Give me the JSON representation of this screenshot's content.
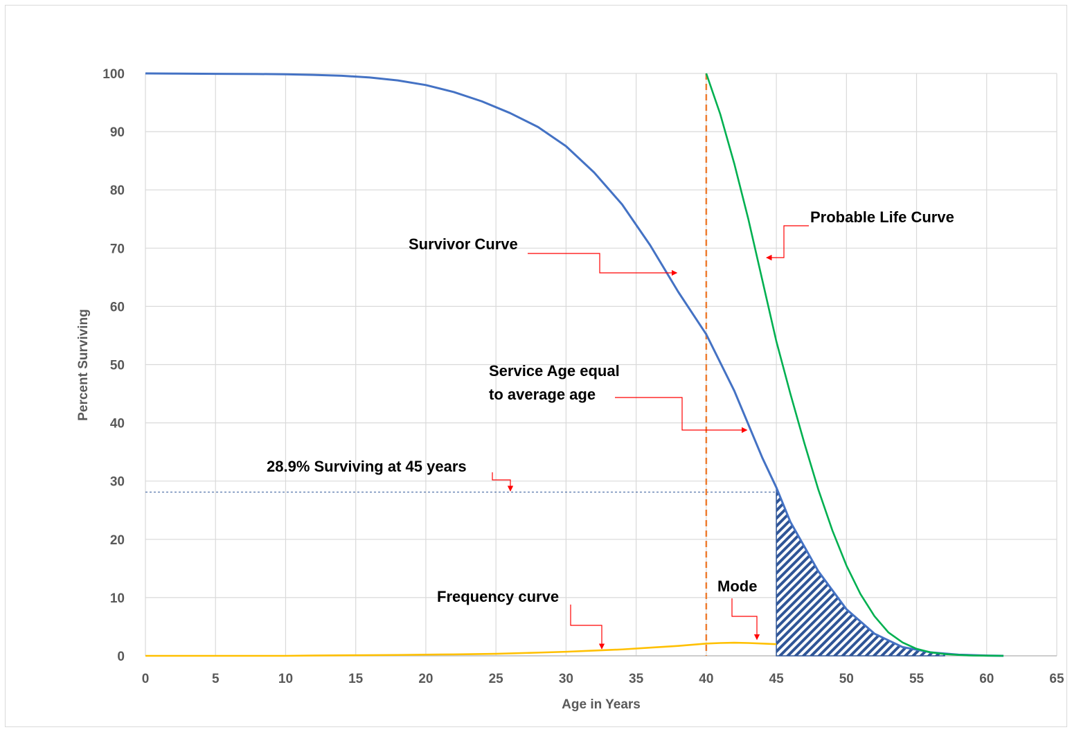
{
  "chart_data": {
    "type": "line",
    "title": "",
    "xlabel": "Age in Years",
    "ylabel": "Percent Surviving",
    "xlim": [
      0,
      65
    ],
    "ylim": [
      0,
      100
    ],
    "x_ticks": [
      "0",
      "5",
      "10",
      "15",
      "20",
      "25",
      "30",
      "35",
      "40",
      "45",
      "50",
      "55",
      "60",
      "65"
    ],
    "y_ticks": [
      "0",
      "10",
      "20",
      "30",
      "40",
      "50",
      "60",
      "70",
      "80",
      "90",
      "100"
    ],
    "grid": true,
    "legend": "none",
    "colors": {
      "survivor": "#4472c4",
      "probable_life": "#00b050",
      "frequency": "#ffc000",
      "average_age_line": "#ed7d31",
      "reference_line": "#2f5597",
      "annotation_arrow": "#ff0000",
      "hatch": "#2f5597"
    },
    "series": [
      {
        "key": "survivor",
        "x": [
          0,
          2,
          5,
          8,
          10,
          12,
          14,
          16,
          18,
          20,
          22,
          24,
          26,
          28,
          30,
          32,
          34,
          36,
          38,
          40,
          42,
          44,
          45,
          46,
          48,
          50,
          52,
          54,
          56,
          58,
          60,
          61.2
        ],
        "y": [
          100,
          99.97,
          99.93,
          99.9,
          99.85,
          99.75,
          99.6,
          99.3,
          98.8,
          98.0,
          96.8,
          95.2,
          93.2,
          90.8,
          87.5,
          83.0,
          77.5,
          70.5,
          62.5,
          55.2,
          45.5,
          34.0,
          28.9,
          23.0,
          14.5,
          8.0,
          3.8,
          1.5,
          0.6,
          0.2,
          0.05,
          0
        ]
      },
      {
        "key": "probable_life",
        "x": [
          40,
          41,
          42,
          43,
          44,
          45,
          46,
          47,
          48,
          49,
          50,
          51,
          52,
          53,
          54,
          55,
          56,
          57,
          58,
          59,
          60,
          61.2
        ],
        "y": [
          100,
          93.0,
          84.5,
          75.0,
          64.5,
          54.0,
          45.0,
          36.5,
          28.5,
          21.5,
          15.5,
          10.6,
          6.8,
          4.0,
          2.3,
          1.2,
          0.6,
          0.3,
          0.15,
          0.05,
          0.02,
          0
        ]
      },
      {
        "key": "frequency",
        "x": [
          0,
          5,
          10,
          12,
          15,
          18,
          20,
          22,
          25,
          28,
          30,
          32,
          34,
          36,
          38,
          40,
          41,
          42,
          43,
          44,
          45
        ],
        "y": [
          0,
          0,
          0,
          0.05,
          0.1,
          0.15,
          0.2,
          0.25,
          0.35,
          0.55,
          0.7,
          0.9,
          1.1,
          1.4,
          1.7,
          2.1,
          2.2,
          2.25,
          2.2,
          2.1,
          2.0
        ]
      }
    ],
    "average_age": 40,
    "reference_level": 28.1,
    "shaded_region": {
      "from_x": 45,
      "to_x": 57,
      "under": "survivor"
    },
    "annotations": {
      "survivor": "Survivor Curve",
      "probable_life": "Probable Life Curve",
      "service_age_1": "Service Age equal",
      "service_age_2": "to average age",
      "surviving": "28.9% Surviving at 45 years",
      "frequency": "Frequency curve",
      "mode": "Mode"
    },
    "annotation_targets": {
      "survivor": [
        37.9,
        66.0
      ],
      "probable_life": [
        44.3,
        68.5
      ],
      "service_age": [
        42.9,
        39.2
      ],
      "surviving": [
        26.4,
        28.3
      ],
      "frequency": [
        32.7,
        1.2
      ],
      "mode": [
        43.5,
        2.8
      ]
    }
  }
}
